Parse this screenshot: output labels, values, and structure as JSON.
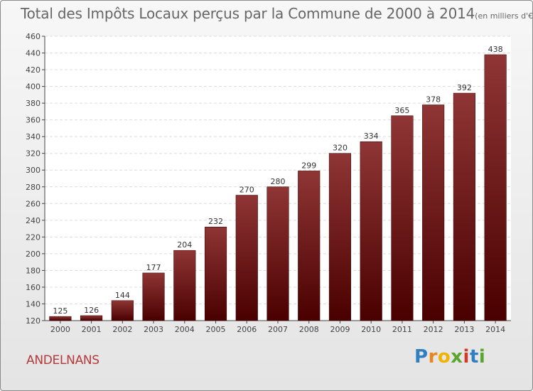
{
  "title": "Total des Impôts Locaux perçus par la Commune de 2000 à 2014",
  "title_unit": "(en milliers d'€)",
  "commune": "ANDELNANS",
  "logo": {
    "letters": [
      "P",
      "r",
      "o",
      "x",
      "i",
      "t",
      "i"
    ],
    "colors": [
      "#2f7fc1",
      "#e7851e",
      "#f2b300",
      "#5aa52e",
      "#d03a2a",
      "#2f7fc1",
      "#5aa52e"
    ]
  },
  "colors": {
    "bar_top": "#8f3535",
    "bar_bottom": "#4a0000",
    "commune": "#b23a3a"
  },
  "chart_data": {
    "type": "bar",
    "title": "Total des Impôts Locaux perçus par la Commune de 2000 à 2014",
    "xlabel": "",
    "ylabel": "",
    "categories": [
      "2000",
      "2001",
      "2002",
      "2003",
      "2004",
      "2005",
      "2006",
      "2007",
      "2008",
      "2009",
      "2010",
      "2011",
      "2012",
      "2013",
      "2014"
    ],
    "values": [
      125,
      126,
      144,
      177,
      204,
      232,
      270,
      280,
      299,
      320,
      334,
      365,
      378,
      392,
      438
    ],
    "ylim": [
      120,
      460
    ],
    "yticks": [
      120,
      140,
      160,
      180,
      200,
      220,
      240,
      260,
      280,
      300,
      320,
      340,
      360,
      380,
      400,
      420,
      440,
      460
    ],
    "grid": true
  }
}
